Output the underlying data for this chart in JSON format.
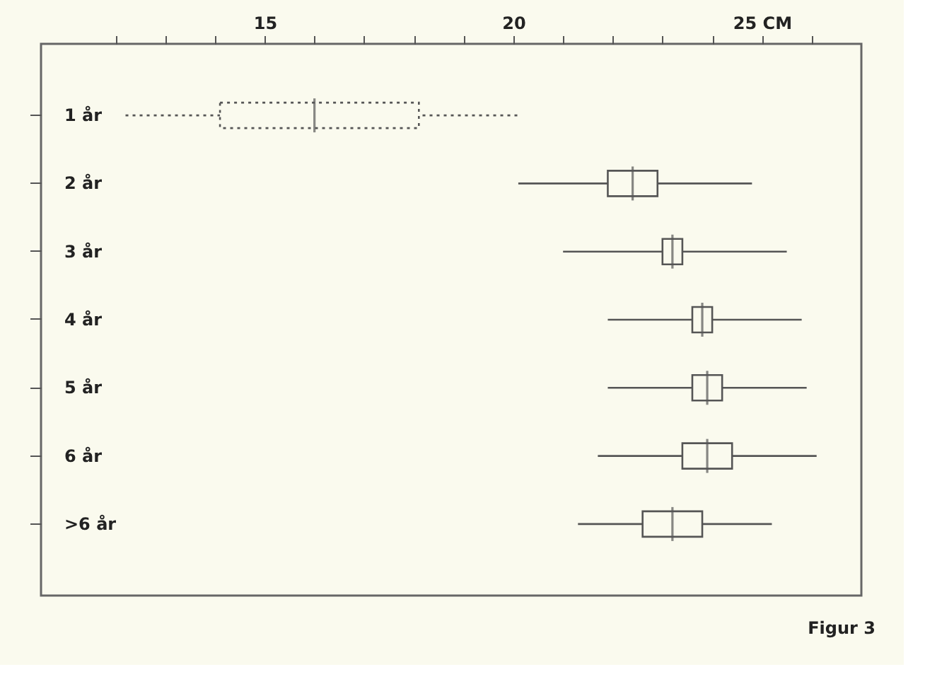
{
  "chart_data": {
    "type": "box",
    "orientation": "horizontal",
    "categories": [
      "1 år",
      "2 år",
      "3 år",
      "4 år",
      "5 år",
      "6 år",
      ">6 år"
    ],
    "series": [
      {
        "color": "#555555",
        "line_style": "dotted",
        "boxes": [
          {
            "low": 12.2,
            "q1": 14.1,
            "median": 16.0,
            "q3": 18.1,
            "high": 20.1
          },
          null,
          null,
          null,
          null,
          null,
          null
        ]
      },
      {
        "color": "#555555",
        "line_style": "solid",
        "boxes": [
          null,
          {
            "low": 20.1,
            "q1": 21.9,
            "median": 22.4,
            "q3": 22.9,
            "high": 24.8
          },
          {
            "low": 21.0,
            "q1": 23.0,
            "median": 23.2,
            "q3": 23.4,
            "high": 25.5
          },
          {
            "low": 21.9,
            "q1": 23.6,
            "median": 23.8,
            "q3": 24.0,
            "high": 25.8
          },
          {
            "low": 21.9,
            "q1": 23.6,
            "median": 23.9,
            "q3": 24.2,
            "high": 25.9
          },
          {
            "low": 21.7,
            "q1": 23.4,
            "median": 23.9,
            "q3": 24.4,
            "high": 26.1
          },
          {
            "low": 21.3,
            "q1": 22.6,
            "median": 23.2,
            "q3": 23.8,
            "high": 25.2
          }
        ]
      }
    ],
    "xlim": [
      10.5,
      27
    ],
    "xticks": [
      {
        "value": 12,
        "label": null
      },
      {
        "value": 13,
        "label": null
      },
      {
        "value": 14,
        "label": null
      },
      15,
      {
        "value": 16,
        "label": null
      },
      {
        "value": 17,
        "label": null
      },
      {
        "value": 18,
        "label": null
      },
      {
        "value": 19,
        "label": null
      },
      20,
      {
        "value": 21,
        "label": null
      },
      {
        "value": 22,
        "label": null
      },
      {
        "value": 23,
        "label": null
      },
      {
        "value": 24,
        "label": null
      },
      {
        "value": 25,
        "label": "25 CM"
      },
      {
        "value": 26,
        "label": null
      }
    ],
    "grid": false,
    "annotations": [
      "Figur 3"
    ]
  }
}
